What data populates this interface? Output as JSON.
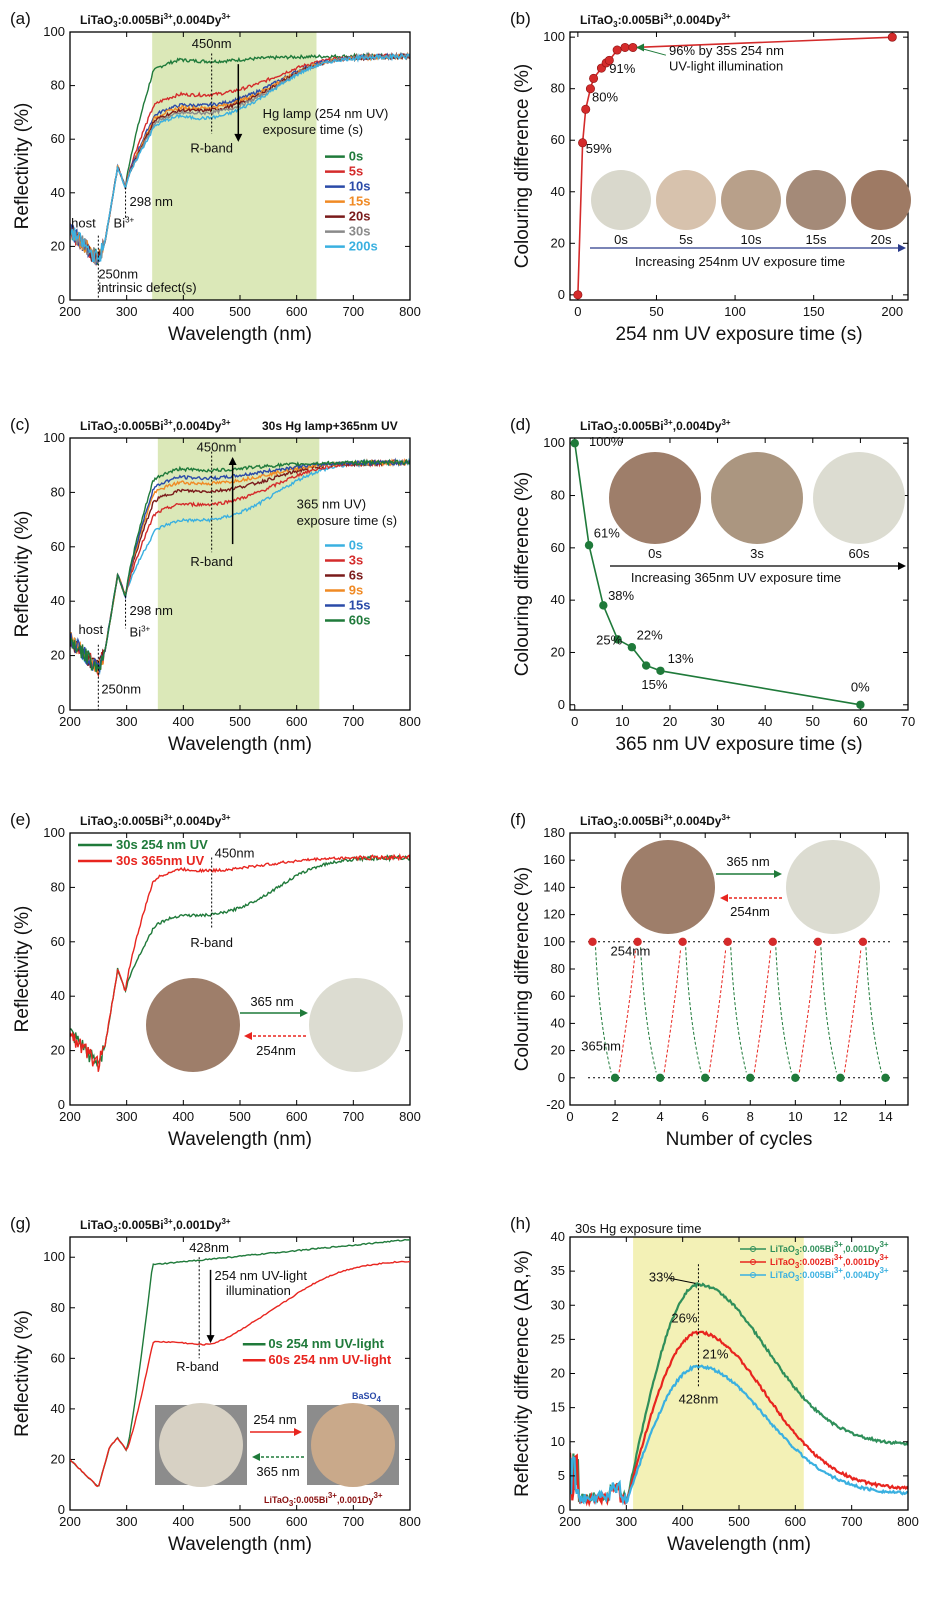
{
  "chart_data": [
    {
      "id": "a",
      "type": "line",
      "panel_letter": "(a)",
      "title_parts": [
        "LiTaO",
        "3",
        ":0.005Bi",
        "3+",
        ",0.004Dy",
        "3+"
      ],
      "xlabel": "Wavelength (nm)",
      "ylabel": "Reflectivity (%)",
      "xlim": [
        200,
        800
      ],
      "ylim": [
        0,
        100
      ],
      "xticks": [
        200,
        300,
        400,
        500,
        600,
        700,
        800
      ],
      "yticks": [
        0,
        20,
        40,
        60,
        80,
        100
      ],
      "shade": {
        "x": [
          345,
          635
        ],
        "color": "#dbe8b8"
      },
      "legend_title": [
        "Hg lamp (254 nm UV)",
        "exposure time (s)"
      ],
      "series": [
        {
          "name": "0s",
          "color": "#1f7a3a",
          "plateau": 90,
          "rband": 89
        },
        {
          "name": "5s",
          "color": "#d42b2b",
          "plateau": 77,
          "rband": 76
        },
        {
          "name": "10s",
          "color": "#2a4aa8",
          "plateau": 73,
          "rband": 72
        },
        {
          "name": "15s",
          "color": "#f08a24",
          "plateau": 72,
          "rband": 71
        },
        {
          "name": "20s",
          "color": "#7a1a1a",
          "plateau": 71,
          "rband": 70
        },
        {
          "name": "30s",
          "color": "#8a8a8a",
          "plateau": 70,
          "rband": 69
        },
        {
          "name": "200s",
          "color": "#3ab0e0",
          "plateau": 69,
          "rband": 67
        }
      ],
      "annotations": {
        "wl450": "450nm",
        "rband": "R-band",
        "bi": "298 nm",
        "bi_label": "Bi",
        "bi_sup": "3+",
        "host": "host",
        "defect": "250nm",
        "defect2": "intrinsic defect(s)"
      }
    },
    {
      "id": "b",
      "type": "scatter",
      "panel_letter": "(b)",
      "title_parts": [
        "LiTaO",
        "3",
        ":0.005Bi",
        "3+",
        ",0.004Dy",
        "3+"
      ],
      "xlabel": "254 nm UV exposure time (s)",
      "ylabel": "Colouring difference (%)",
      "xlim": [
        -5,
        210
      ],
      "ylim": [
        -2,
        102
      ],
      "xticks": [
        0,
        50,
        100,
        150,
        200
      ],
      "yticks": [
        0,
        20,
        40,
        60,
        80,
        100
      ],
      "x": [
        0,
        3,
        5,
        8,
        10,
        15,
        18,
        20,
        25,
        30,
        35,
        200
      ],
      "y": [
        0,
        59,
        72,
        80,
        84,
        88,
        90,
        91,
        95,
        96,
        96,
        100
      ],
      "color": "#d42b2b",
      "point_labels": [
        {
          "x": 5,
          "y": 55,
          "text": "59%"
        },
        {
          "x": 9,
          "y": 75,
          "text": "80%"
        },
        {
          "x": 20,
          "y": 86,
          "text": "91%"
        }
      ],
      "note": [
        "96% by 35s 254 nm",
        "UV-light illumination"
      ],
      "swatches": [
        {
          "label": "0s",
          "color": "#d9d8cc"
        },
        {
          "label": "5s",
          "color": "#d7c2ad"
        },
        {
          "label": "10s",
          "color": "#b8a08a"
        },
        {
          "label": "15s",
          "color": "#a48a78"
        },
        {
          "label": "20s",
          "color": "#9e7a64"
        }
      ],
      "arrow_label": "Increasing 254nm UV exposure time"
    },
    {
      "id": "c",
      "type": "line",
      "panel_letter": "(c)",
      "title_parts": [
        "LiTaO",
        "3",
        ":0.005Bi",
        "3+",
        ",0.004Dy",
        "3+"
      ],
      "title_extra": "30s Hg lamp+365nm UV",
      "xlabel": "Wavelength (nm)",
      "ylabel": "Reflectivity (%)",
      "xlim": [
        200,
        800
      ],
      "ylim": [
        0,
        100
      ],
      "xticks": [
        200,
        300,
        400,
        500,
        600,
        700,
        800
      ],
      "yticks": [
        0,
        20,
        40,
        60,
        80,
        100
      ],
      "shade": {
        "x": [
          355,
          640
        ],
        "color": "#dbe8b8"
      },
      "legend_title": [
        "365 nm UV)",
        "exposure time (s)"
      ],
      "series": [
        {
          "name": "0s",
          "color": "#3ab0e0",
          "plateau": 70,
          "rband": 69
        },
        {
          "name": "3s",
          "color": "#d42b2b",
          "plateau": 76,
          "rband": 75
        },
        {
          "name": "6s",
          "color": "#7a1a1a",
          "plateau": 81,
          "rband": 80
        },
        {
          "name": "9s",
          "color": "#f08a24",
          "plateau": 84,
          "rband": 83
        },
        {
          "name": "15s",
          "color": "#2a4aa8",
          "plateau": 86,
          "rband": 85
        },
        {
          "name": "60s",
          "color": "#1f7a3a",
          "plateau": 89,
          "rband": 88
        }
      ],
      "annotations": {
        "wl450": "450nm",
        "rband": "R-band",
        "bi": "298 nm",
        "bi_label": "Bi",
        "bi_sup": "3+",
        "host": "host",
        "defect": "250nm"
      }
    },
    {
      "id": "d",
      "type": "scatter",
      "panel_letter": "(d)",
      "title_parts": [
        "LiTaO",
        "3",
        ":0.005Bi",
        "3+",
        ",0.004Dy",
        "3+"
      ],
      "xlabel": "365 nm UV exposure time (s)",
      "ylabel": "Colouring difference (%)",
      "xlim": [
        -1,
        70
      ],
      "ylim": [
        -2,
        102
      ],
      "xticks": [
        0,
        10,
        20,
        30,
        40,
        50,
        60,
        70
      ],
      "yticks": [
        0,
        20,
        40,
        60,
        80,
        100
      ],
      "x": [
        0,
        3,
        6,
        9,
        12,
        15,
        18,
        60
      ],
      "y": [
        100,
        61,
        38,
        25,
        22,
        15,
        13,
        0
      ],
      "color": "#1f7a3a",
      "point_labels": [
        {
          "x": 3,
          "y": 99,
          "text": "100%"
        },
        {
          "x": 4,
          "y": 64,
          "text": "61%"
        },
        {
          "x": 7,
          "y": 40,
          "text": "38%"
        },
        {
          "x": 4.5,
          "y": 23,
          "text": "25%"
        },
        {
          "x": 13,
          "y": 25,
          "text": "22%"
        },
        {
          "x": 14,
          "y": 6,
          "text": "15%"
        },
        {
          "x": 19.5,
          "y": 16,
          "text": "13%"
        },
        {
          "x": 58,
          "y": 5,
          "text": "0%"
        }
      ],
      "swatches": [
        {
          "label": "0s",
          "color": "#9e7e6a"
        },
        {
          "label": "3s",
          "color": "#ab9680"
        },
        {
          "label": "60s",
          "color": "#dcdcd1"
        }
      ],
      "arrow_label": "Increasing 365nm UV exposure time"
    },
    {
      "id": "e",
      "type": "line",
      "panel_letter": "(e)",
      "title_parts": [
        "LiTaO",
        "3",
        ":0.005Bi",
        "3+",
        ",0.004Dy",
        "3+"
      ],
      "xlabel": "Wavelength (nm)",
      "ylabel": "Reflectivity (%)",
      "xlim": [
        200,
        800
      ],
      "ylim": [
        0,
        100
      ],
      "xticks": [
        200,
        300,
        400,
        500,
        600,
        700,
        800
      ],
      "yticks": [
        0,
        20,
        40,
        60,
        80,
        100
      ],
      "series": [
        {
          "name": "30s 254 nm UV",
          "color": "#1f7a3a",
          "plateau": 70,
          "rband": 69
        },
        {
          "name": "30s 365nm UV",
          "color": "#e8251f",
          "plateau": 87,
          "rband": 86
        }
      ],
      "annotations": {
        "wl450": "450nm",
        "rband": "R-band"
      },
      "swatches": [
        {
          "color": "#9e7e6a"
        },
        {
          "color": "#dcdcd1"
        }
      ],
      "forward": "365 nm",
      "reverse": "254nm"
    },
    {
      "id": "f",
      "type": "scatter",
      "panel_letter": "(f)",
      "title_parts": [
        "LiTaO",
        "3",
        ":0.005Bi",
        "3+",
        ",0.004Dy",
        "3+"
      ],
      "xlabel": "Number of cycles",
      "ylabel": "Colouring difference (%)",
      "xlim": [
        0,
        15
      ],
      "ylim": [
        -20,
        180
      ],
      "xticks": [
        0,
        2,
        4,
        6,
        8,
        10,
        12,
        14
      ],
      "yticks": [
        -20,
        0,
        20,
        40,
        60,
        80,
        100,
        120,
        140,
        160,
        180
      ],
      "high": {
        "x": [
          1,
          3,
          5,
          7,
          9,
          11,
          13
        ],
        "y": 100,
        "color": "#d42b2b"
      },
      "low": {
        "x": [
          2,
          4,
          6,
          8,
          10,
          12,
          14
        ],
        "y": 0,
        "color": "#1f7a3a"
      },
      "swatches": [
        {
          "color": "#9e7e6a"
        },
        {
          "color": "#dcdcd1"
        }
      ],
      "forward": "365 nm",
      "reverse": "254nm",
      "label_254": "254nm",
      "label_365": "365nm"
    },
    {
      "id": "g",
      "type": "line",
      "panel_letter": "(g)",
      "title_parts": [
        "LiTaO",
        "3",
        ":0.005Bi",
        "3+",
        ",0.001Dy",
        "3+"
      ],
      "xlabel": "Wavelength (nm)",
      "ylabel": "Reflectivity (%)",
      "xlim": [
        200,
        800
      ],
      "ylim": [
        0,
        108
      ],
      "xticks": [
        200,
        300,
        400,
        500,
        600,
        700,
        800
      ],
      "yticks": [
        0,
        20,
        40,
        60,
        80,
        100
      ],
      "series": [
        {
          "name": "0s 254 nm UV-light",
          "color": "#1f7a3a"
        },
        {
          "name": "60s 254 nm UV-light",
          "color": "#e8251f"
        }
      ],
      "annotations": {
        "wl428": "428nm",
        "rband": "R-band",
        "illum1": "254 nm UV-light",
        "illum2": "illumination",
        "baso4": "BaSO",
        "baso4_sub": "4",
        "forward": "254 nm",
        "reverse": "365 nm",
        "sample_parts": [
          "LiTaO",
          "3",
          ":0.005Bi",
          "3+",
          ",0.001Dy",
          "3+"
        ]
      }
    },
    {
      "id": "h",
      "type": "line",
      "panel_letter": "(h)",
      "title": "30s Hg exposure time",
      "xlabel": "Wavelength (nm)",
      "ylabel": "Reflectivity difference (ΔR,%)",
      "xlim": [
        200,
        800
      ],
      "ylim": [
        0,
        40
      ],
      "xticks": [
        200,
        300,
        400,
        500,
        600,
        700,
        800
      ],
      "yticks": [
        0,
        5,
        10,
        15,
        20,
        25,
        30,
        35,
        40
      ],
      "shade": {
        "x": [
          312,
          615
        ],
        "color": "#f3f1b6"
      },
      "series": [
        {
          "name_parts": [
            "LiTaO",
            "3",
            ":0.005Bi",
            "3+",
            ",0.001Dy",
            "3+"
          ],
          "color": "#2f8f5a",
          "peak": 33,
          "tail": 9.5
        },
        {
          "name_parts": [
            "LiTaO",
            "3",
            ":0.002Bi",
            "3+",
            ",0.001Dy",
            "3+"
          ],
          "color": "#e8251f",
          "peak": 26,
          "tail": 3
        },
        {
          "name_parts": [
            "LiTaO",
            "3",
            ":0.005Bi",
            "3+",
            ",0.004Dy",
            "3+"
          ],
          "color": "#3ab0e0",
          "peak": 21,
          "tail": 2.3
        }
      ],
      "annotations": {
        "p1": "33%",
        "p2": "26%",
        "p3": "21%",
        "wl428": "428nm"
      }
    }
  ]
}
